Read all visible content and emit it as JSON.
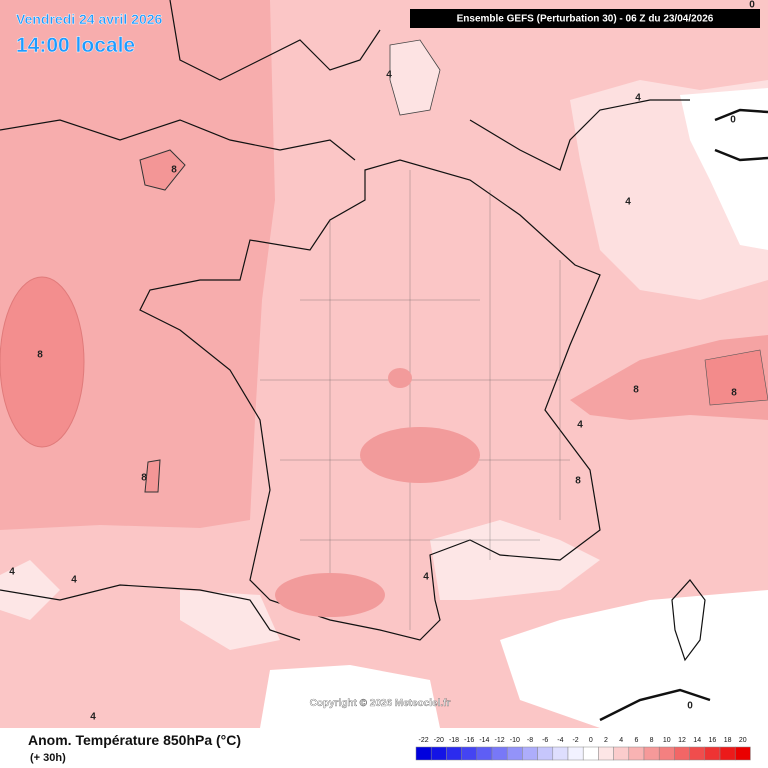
{
  "header": {
    "date": "Vendredi 24 avril 2026",
    "time": "14:00 locale",
    "run": "Ensemble GEFS  (Perturbation 30)  -  06 Z du 23/04/2026"
  },
  "map": {
    "contour_labels": [
      "4",
      "4",
      "0",
      "0",
      "8",
      "4",
      "8",
      "8",
      "8",
      "8",
      "4",
      "8",
      "4",
      "4",
      "4",
      "0",
      "4"
    ],
    "copyright": "Copyright © 2026 Meteociel.fr"
  },
  "footer": {
    "title": "Anom. Température 850hPa (°C)",
    "lead": "(+ 30h)"
  },
  "legend": {
    "labels": [
      "-22",
      "-20",
      "-18",
      "-16",
      "-14",
      "-12",
      "-10",
      "-8",
      "-6",
      "-4",
      "-2",
      "0",
      "2",
      "4",
      "6",
      "8",
      "10",
      "12",
      "14",
      "16",
      "18",
      "20"
    ],
    "colors": [
      "#0000dd",
      "#1414e6",
      "#2b2bee",
      "#4444f2",
      "#5e5ef5",
      "#7878f7",
      "#9393f9",
      "#adadfb",
      "#c6c6fc",
      "#dedefe",
      "#f2f2ff",
      "#ffffff",
      "#fde6e6",
      "#fbcccc",
      "#f9b3b3",
      "#f69999",
      "#f48080",
      "#f26666",
      "#f04d4d",
      "#ee3333",
      "#ec1a1a",
      "#ea0000"
    ]
  }
}
